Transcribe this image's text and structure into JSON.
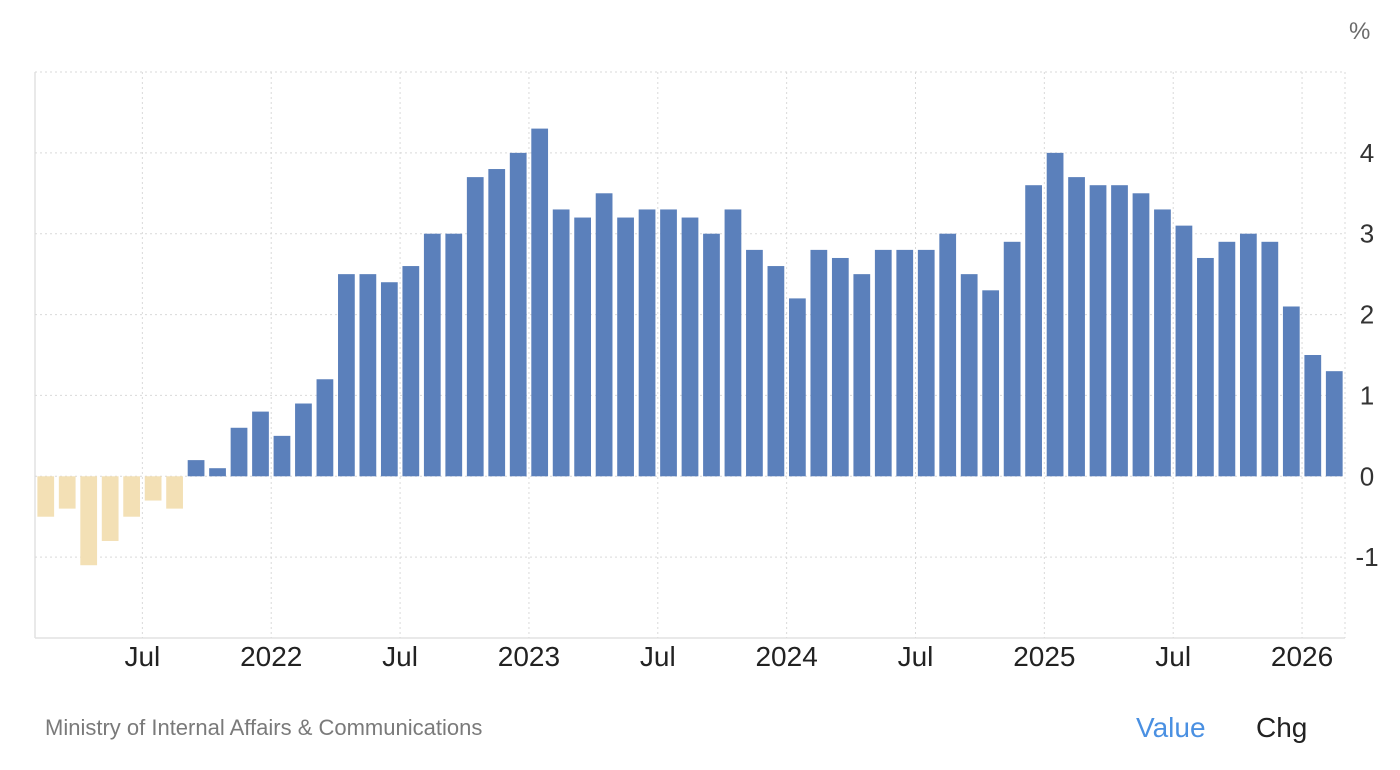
{
  "header": {
    "unit_label": "%"
  },
  "footer": {
    "source": "Ministry of Internal Affairs & Communications",
    "toggles": {
      "value_label": "Value",
      "chg_label": "Chg"
    }
  },
  "colors": {
    "positive": "#5b80bb",
    "negative": "#f3e0b5",
    "grid": "#d9d9d9",
    "active_toggle": "#4a90e2"
  },
  "chart_data": {
    "type": "bar",
    "unit": "%",
    "ylim": [
      -2,
      5
    ],
    "yticks": [
      -1,
      0,
      1,
      2,
      3,
      4
    ],
    "x_tick_labels": [
      "Jul",
      "2022",
      "Jul",
      "2023",
      "Jul",
      "2024",
      "Jul",
      "2025",
      "Jul",
      "2026"
    ],
    "x_tick_positions": [
      "2021-07",
      "2022-01",
      "2022-07",
      "2023-01",
      "2023-07",
      "2024-01",
      "2024-07",
      "2025-01",
      "2025-07",
      "2026-01"
    ],
    "grid": true,
    "categories": [
      "2021-02",
      "2021-03",
      "2021-04",
      "2021-05",
      "2021-06",
      "2021-07",
      "2021-08",
      "2021-09",
      "2021-10",
      "2021-11",
      "2021-12",
      "2022-01",
      "2022-02",
      "2022-03",
      "2022-04",
      "2022-05",
      "2022-06",
      "2022-07",
      "2022-08",
      "2022-09",
      "2022-10",
      "2022-11",
      "2022-12",
      "2023-01",
      "2023-02",
      "2023-03",
      "2023-04",
      "2023-05",
      "2023-06",
      "2023-07",
      "2023-08",
      "2023-09",
      "2023-10",
      "2023-11",
      "2023-12",
      "2024-01",
      "2024-02",
      "2024-03",
      "2024-04",
      "2024-05",
      "2024-06",
      "2024-07",
      "2024-08",
      "2024-09",
      "2024-10",
      "2024-11",
      "2024-12",
      "2025-01",
      "2025-02",
      "2025-03",
      "2025-04",
      "2025-05",
      "2025-06",
      "2025-07",
      "2025-08",
      "2025-09",
      "2025-10",
      "2025-11",
      "2025-12",
      "2026-01",
      "2026-02"
    ],
    "values": [
      -0.5,
      -0.4,
      -1.1,
      -0.8,
      -0.5,
      -0.3,
      -0.4,
      0.2,
      0.1,
      0.6,
      0.8,
      0.5,
      0.9,
      1.2,
      2.5,
      2.5,
      2.4,
      2.6,
      3.0,
      3.0,
      3.7,
      3.8,
      4.0,
      4.3,
      3.3,
      3.2,
      3.5,
      3.2,
      3.3,
      3.3,
      3.2,
      3.0,
      3.3,
      2.8,
      2.6,
      2.2,
      2.8,
      2.7,
      2.5,
      2.8,
      2.8,
      2.8,
      3.0,
      2.5,
      2.3,
      2.9,
      3.6,
      4.0,
      3.7,
      3.6,
      3.6,
      3.5,
      3.3,
      3.1,
      2.7,
      2.9,
      3.0,
      2.9,
      2.1,
      1.5,
      1.3
    ]
  }
}
